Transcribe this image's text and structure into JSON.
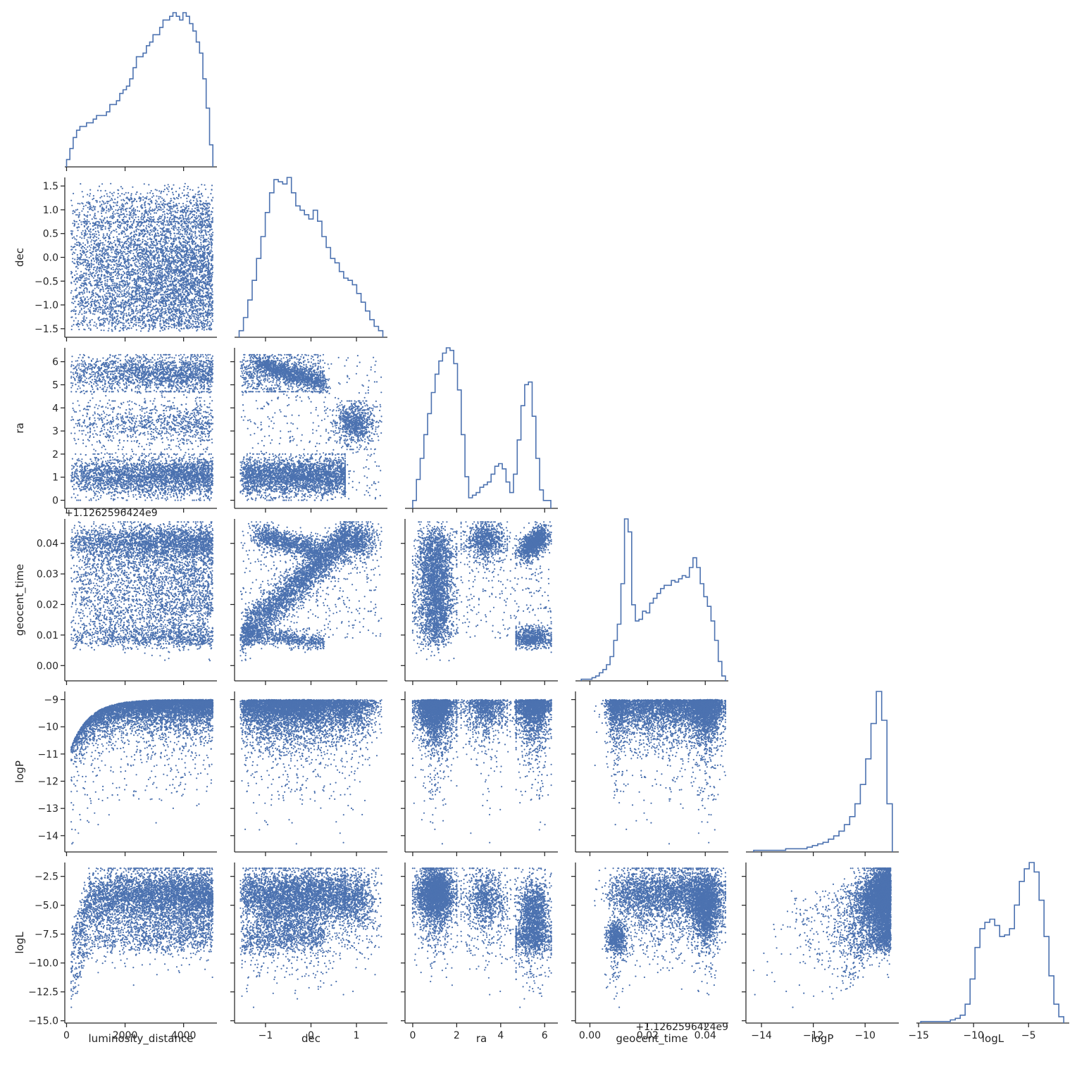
{
  "chart_data": {
    "type": "scatter",
    "layout": "corner-pairplot",
    "marker_color": "#4c72b0",
    "variables": [
      {
        "name": "luminosity_distance",
        "label": "luminosity_distance",
        "range": [
          -60,
          5140
        ],
        "ticks": [
          0,
          2000,
          4000
        ],
        "tick_labels": [
          "0",
          "2000",
          "4000"
        ]
      },
      {
        "name": "dec",
        "label": "dec",
        "range": [
          -1.68,
          1.68
        ],
        "ticks": [
          -1.5,
          -1.0,
          -0.5,
          0.0,
          0.5,
          1.0,
          1.5
        ],
        "x_ticks": [
          -1,
          0,
          1
        ],
        "x_tick_labels": [
          "−1",
          "0",
          "1"
        ],
        "tick_labels": [
          "−1.5",
          "−1.0",
          "−0.5",
          "0.0",
          "0.5",
          "1.0",
          "1.5"
        ]
      },
      {
        "name": "ra",
        "label": "ra",
        "range": [
          -0.35,
          6.6
        ],
        "ticks": [
          0,
          1,
          2,
          3,
          4,
          5,
          6
        ],
        "x_ticks": [
          0,
          2,
          4,
          6
        ],
        "x_tick_labels": [
          "0",
          "2",
          "4",
          "6"
        ],
        "tick_labels": [
          "0",
          "1",
          "2",
          "3",
          "4",
          "5",
          "6"
        ]
      },
      {
        "name": "geocent_time",
        "label": "geocent_time",
        "range": [
          -0.005,
          0.048
        ],
        "ticks": [
          0.0,
          0.01,
          0.02,
          0.03,
          0.04
        ],
        "x_ticks": [
          0.0,
          0.02,
          0.04
        ],
        "x_tick_labels": [
          "0.00",
          "0.02",
          "0.04"
        ],
        "tick_labels": [
          "0.00",
          "0.01",
          "0.02",
          "0.03",
          "0.04"
        ],
        "offset_text": "+1.1262596424e9"
      },
      {
        "name": "logP",
        "label": "logP",
        "range": [
          -14.6,
          -8.7
        ],
        "ticks": [
          -14,
          -13,
          -12,
          -11,
          -10,
          -9
        ],
        "x_ticks": [
          -14,
          -12,
          -10
        ],
        "x_tick_labels": [
          "−14",
          "−12",
          "−10"
        ],
        "tick_labels": [
          "−14",
          "−13",
          "−12",
          "−11",
          "−10",
          "−9"
        ]
      },
      {
        "name": "logL",
        "label": "logL",
        "range": [
          -15.2,
          -1.3
        ],
        "ticks": [
          -15.0,
          -12.5,
          -10.0,
          -7.5,
          -5.0,
          -2.5
        ],
        "x_ticks": [
          -15,
          -10,
          -5
        ],
        "x_tick_labels": [
          "−15",
          "−10",
          "−5"
        ],
        "tick_labels": [
          "−15.0",
          "−12.5",
          "−10.0",
          "−7.5",
          "−5.0",
          "−2.5"
        ]
      }
    ],
    "histograms": {
      "luminosity_distance": [
        2,
        5,
        8,
        10,
        11,
        11,
        12,
        12,
        13,
        14,
        14,
        14,
        15,
        17,
        17,
        18,
        20,
        21,
        22,
        24,
        27,
        30,
        30,
        31,
        33,
        34,
        36,
        36,
        38,
        40,
        40,
        41,
        42,
        41,
        40,
        42,
        41,
        39,
        37,
        34,
        31,
        24,
        16,
        6
      ],
      "dec": [
        3,
        9,
        17,
        26,
        36,
        46,
        57,
        66,
        72,
        71,
        70,
        73,
        66,
        60,
        58,
        56,
        54,
        58,
        53,
        46,
        41,
        36,
        34,
        30,
        27,
        26,
        24,
        20,
        16,
        12,
        8,
        5,
        3
      ],
      "ra": [
        3,
        11,
        19,
        28,
        36,
        44,
        51,
        56,
        59,
        61,
        60,
        55,
        45,
        28,
        12,
        4,
        5,
        6,
        8,
        9,
        10,
        13,
        16,
        17,
        15,
        10,
        6,
        13,
        26,
        39,
        47,
        48,
        35,
        19,
        7,
        3,
        3
      ],
      "geocent_time": [
        1,
        1,
        1,
        2,
        3,
        5,
        7,
        10,
        15,
        25,
        35,
        60,
        100,
        92,
        47,
        37,
        38,
        43,
        42,
        48,
        51,
        54,
        57,
        59,
        59,
        62,
        61,
        63,
        65,
        64,
        70,
        76,
        70,
        60,
        52,
        46,
        37,
        25,
        12,
        3
      ],
      "logP": [
        1,
        1,
        1,
        1,
        1,
        1,
        2,
        2,
        2,
        2,
        3,
        4,
        5,
        6,
        8,
        10,
        13,
        17,
        22,
        30,
        42,
        58,
        80,
        100,
        82,
        30
      ],
      "logL": [
        1,
        1,
        1,
        1,
        1,
        1,
        2,
        3,
        5,
        12,
        28,
        48,
        60,
        64,
        66,
        62,
        55,
        56,
        60,
        75,
        90,
        98,
        102,
        96,
        78,
        55,
        30,
        12,
        4
      ]
    },
    "scatter_points_per_panel": 6000
  }
}
